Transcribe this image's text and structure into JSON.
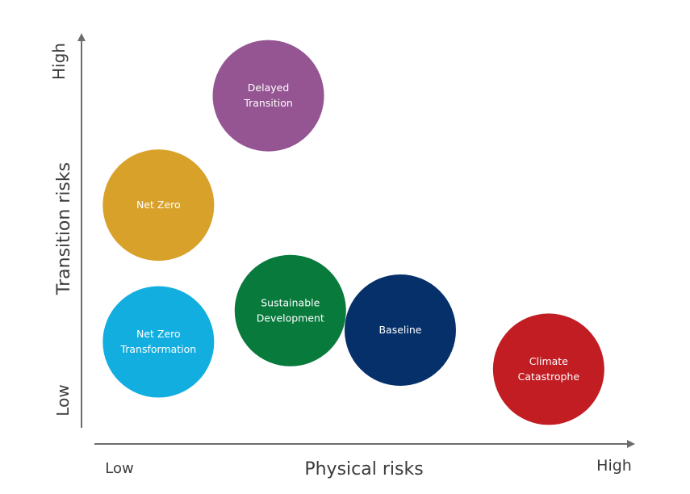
{
  "chart_data": {
    "type": "scatter",
    "xlabel": "Physical risks",
    "ylabel": "Transition risks",
    "x_low_label": "Low",
    "x_high_label": "High",
    "y_low_label": "Low",
    "y_high_label": "High",
    "xlim": [
      0,
      100
    ],
    "ylim": [
      0,
      100
    ],
    "grid": false,
    "points": [
      {
        "label": [
          "Delayed",
          "Transition"
        ],
        "x": 34,
        "y": 85,
        "color": "#945592"
      },
      {
        "label": [
          "Net Zero"
        ],
        "x": 14,
        "y": 57,
        "color": "#d8a12a"
      },
      {
        "label": [
          "Sustainable",
          "Development"
        ],
        "x": 38,
        "y": 30,
        "color": "#077a3c"
      },
      {
        "label": [
          "Net Zero",
          "Transformation"
        ],
        "x": 14,
        "y": 22,
        "color": "#12aee0"
      },
      {
        "label": [
          "Baseline"
        ],
        "x": 58,
        "y": 25,
        "color": "#05306a"
      },
      {
        "label": [
          "Climate",
          "Catastrophe"
        ],
        "x": 85,
        "y": 15,
        "color": "#c11d23"
      }
    ]
  }
}
